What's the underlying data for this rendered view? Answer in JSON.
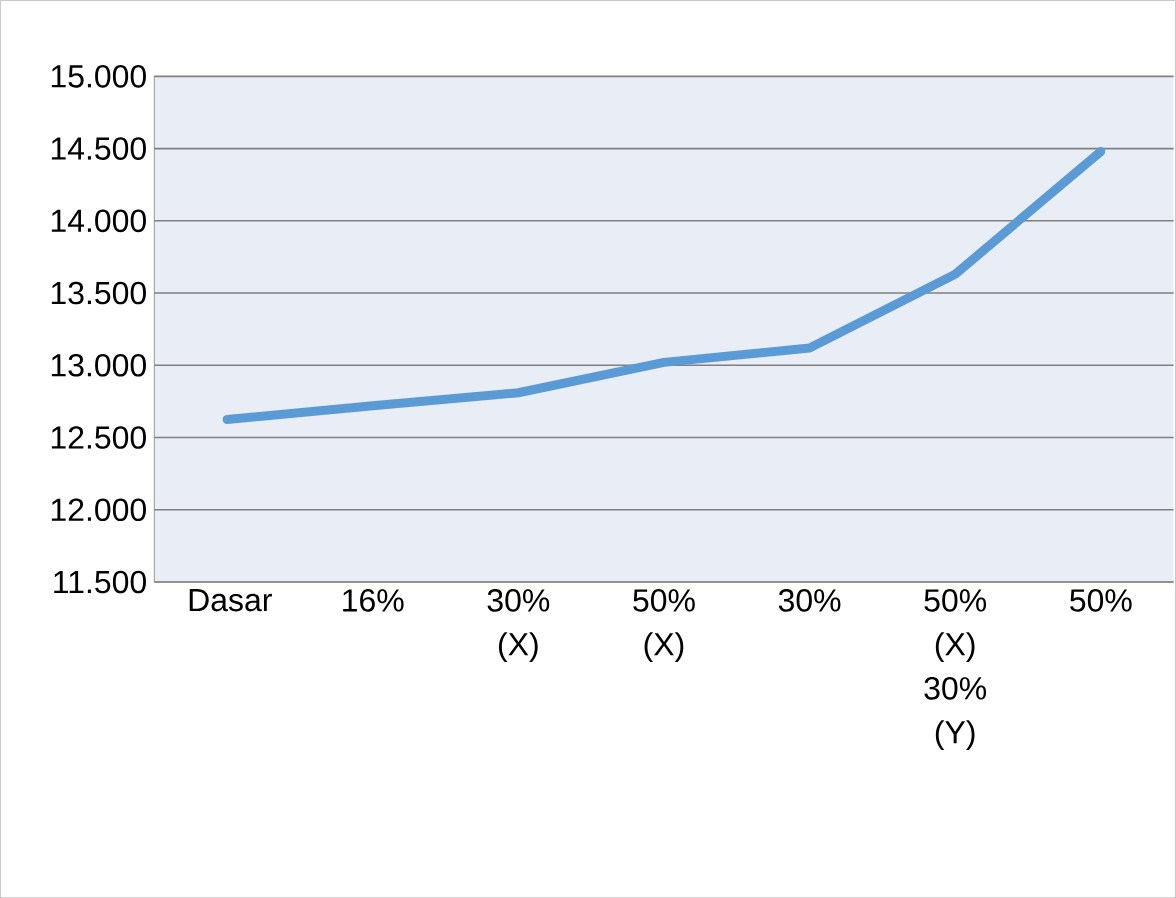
{
  "chart_data": {
    "type": "line",
    "categories": [
      "Dasar",
      "16%",
      "30% (X)",
      "50% (X)",
      "30%",
      "50% (X) 30% (Y)",
      "50%"
    ],
    "values": [
      12625,
      12720,
      12810,
      13020,
      13120,
      13630,
      14480
    ],
    "color": "#5b9bd5",
    "ylim": [
      11500,
      15000
    ],
    "yticks": [
      {
        "value": 11500,
        "label": "11.500"
      },
      {
        "value": 12000,
        "label": "12.000"
      },
      {
        "value": 12500,
        "label": "12.500"
      },
      {
        "value": 13000,
        "label": "13.000"
      },
      {
        "value": 13500,
        "label": "13.500"
      },
      {
        "value": 14000,
        "label": "14.000"
      },
      {
        "value": 14500,
        "label": "14.500"
      },
      {
        "value": 15000,
        "label": "15.000"
      }
    ],
    "grid": "y",
    "marker": "none",
    "line_style": "solid"
  }
}
